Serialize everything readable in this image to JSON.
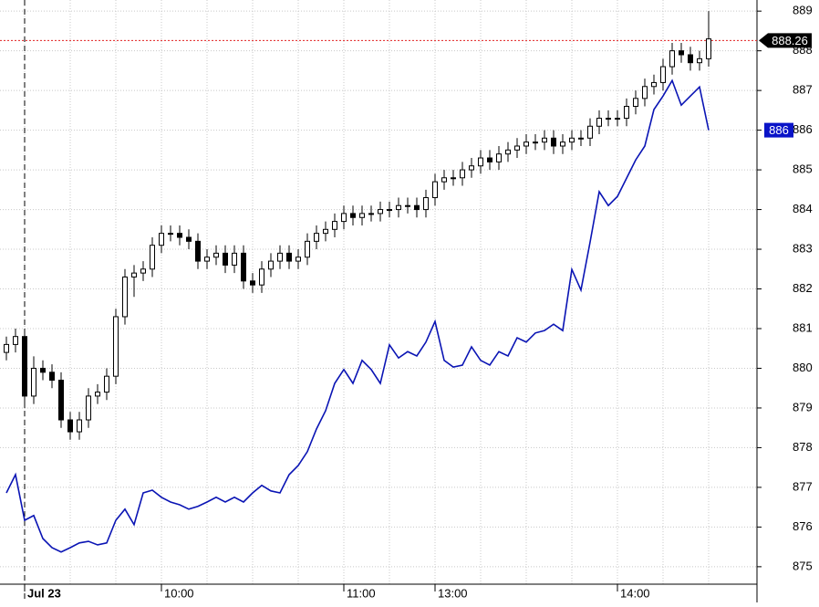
{
  "chart_data": {
    "type": "candlestick",
    "categories": [
      null,
      null,
      "Jul 23",
      null,
      null,
      null,
      null,
      null,
      null,
      null,
      null,
      null,
      null,
      null,
      null,
      null,
      null,
      "10:00",
      null,
      null,
      null,
      null,
      null,
      null,
      null,
      null,
      null,
      null,
      null,
      null,
      null,
      null,
      null,
      null,
      null,
      null,
      null,
      "11:00",
      null,
      null,
      null,
      null,
      null,
      null,
      null,
      null,
      null,
      "13:00",
      null,
      null,
      null,
      null,
      null,
      null,
      null,
      null,
      null,
      null,
      null,
      null,
      null,
      null,
      null,
      null,
      null,
      null,
      null,
      "14:00",
      null,
      null,
      null,
      null,
      null,
      null,
      null,
      null,
      null,
      null
    ],
    "open": [
      880.4,
      880.6,
      880.8,
      879.3,
      880.0,
      879.9,
      879.7,
      878.7,
      878.4,
      878.7,
      879.3,
      879.4,
      879.8,
      881.3,
      882.3,
      882.4,
      882.5,
      883.1,
      883.4,
      883.4,
      883.3,
      883.2,
      882.7,
      882.8,
      882.9,
      882.6,
      882.9,
      882.2,
      882.1,
      882.5,
      882.7,
      882.9,
      882.7,
      882.8,
      883.2,
      883.4,
      883.5,
      883.7,
      883.9,
      883.8,
      883.9,
      883.9,
      884.0,
      884.0,
      884.1,
      884.1,
      884.0,
      884.3,
      884.7,
      884.8,
      884.8,
      885.0,
      885.1,
      885.3,
      885.2,
      885.4,
      885.5,
      885.6,
      885.7,
      885.7,
      885.8,
      885.6,
      885.7,
      885.8,
      885.8,
      886.1,
      886.3,
      886.3,
      886.3,
      886.6,
      886.8,
      887.1,
      887.2,
      887.6,
      888.0,
      887.9,
      887.7,
      887.8
    ],
    "high": [
      880.8,
      881.0,
      881.0,
      880.3,
      880.2,
      880.1,
      879.9,
      878.9,
      878.9,
      879.5,
      879.6,
      880.0,
      881.5,
      882.5,
      882.6,
      882.7,
      883.3,
      883.6,
      883.6,
      883.6,
      883.5,
      883.4,
      883.0,
      883.1,
      883.1,
      883.1,
      883.1,
      882.4,
      882.7,
      882.9,
      883.1,
      883.1,
      883.0,
      883.4,
      883.6,
      883.7,
      883.9,
      884.1,
      884.1,
      884.1,
      884.1,
      884.2,
      884.2,
      884.3,
      884.3,
      884.3,
      884.5,
      884.9,
      885.0,
      885.0,
      885.2,
      885.3,
      885.5,
      885.5,
      885.6,
      885.7,
      885.8,
      885.9,
      885.9,
      886.0,
      886.0,
      885.9,
      886.0,
      886.0,
      886.3,
      886.5,
      886.5,
      886.5,
      886.8,
      887.0,
      887.3,
      887.4,
      887.8,
      888.2,
      888.2,
      888.1,
      888.0,
      889.0
    ],
    "low": [
      880.2,
      880.4,
      879.0,
      879.1,
      879.7,
      879.5,
      878.5,
      878.2,
      878.2,
      878.5,
      879.1,
      879.2,
      879.6,
      881.1,
      881.8,
      882.2,
      882.3,
      882.9,
      883.2,
      883.1,
      883.0,
      882.5,
      882.5,
      882.6,
      882.4,
      882.4,
      882.0,
      881.9,
      881.9,
      882.3,
      882.5,
      882.5,
      882.5,
      882.6,
      883.0,
      883.2,
      883.3,
      883.5,
      883.6,
      883.6,
      883.7,
      883.7,
      883.8,
      883.8,
      883.9,
      883.8,
      883.8,
      884.1,
      884.5,
      884.6,
      884.6,
      884.8,
      884.9,
      885.0,
      885.0,
      885.2,
      885.3,
      885.4,
      885.5,
      885.5,
      885.4,
      885.4,
      885.5,
      885.6,
      885.6,
      885.9,
      886.1,
      886.1,
      886.1,
      886.4,
      886.6,
      886.9,
      887.0,
      887.4,
      887.7,
      887.5,
      887.5,
      887.6
    ],
    "close": [
      880.6,
      880.8,
      879.3,
      880.0,
      879.9,
      879.7,
      878.7,
      878.4,
      878.7,
      879.3,
      879.4,
      879.8,
      881.3,
      882.3,
      882.4,
      882.5,
      883.1,
      883.4,
      883.4,
      883.3,
      883.2,
      882.7,
      882.8,
      882.9,
      882.6,
      882.9,
      882.2,
      882.1,
      882.5,
      882.7,
      882.9,
      882.7,
      882.8,
      883.2,
      883.4,
      883.5,
      883.7,
      883.9,
      883.8,
      883.9,
      883.9,
      884.0,
      884.0,
      884.1,
      884.1,
      884.0,
      884.3,
      884.7,
      884.8,
      884.8,
      885.0,
      885.1,
      885.3,
      885.2,
      885.4,
      885.5,
      885.6,
      885.7,
      885.7,
      885.8,
      885.6,
      885.7,
      885.8,
      885.8,
      886.1,
      886.3,
      886.3,
      886.3,
      886.6,
      886.8,
      887.1,
      887.2,
      887.6,
      888.0,
      887.9,
      887.7,
      887.8,
      888.3
    ],
    "candle_color": "#000000",
    "line_values": [
      876.86,
      877.32,
      876.17,
      876.29,
      875.71,
      875.48,
      875.37,
      875.48,
      875.6,
      875.64,
      875.55,
      875.6,
      876.17,
      876.45,
      876.06,
      876.86,
      876.93,
      876.75,
      876.63,
      876.56,
      876.45,
      876.52,
      876.63,
      876.75,
      876.63,
      876.75,
      876.63,
      876.86,
      877.05,
      876.91,
      876.86,
      877.32,
      877.55,
      877.9,
      878.47,
      878.93,
      879.62,
      879.97,
      879.62,
      880.2,
      879.97,
      879.62,
      880.59,
      880.26,
      880.42,
      880.31,
      880.66,
      881.18,
      880.2,
      880.03,
      880.08,
      880.54,
      880.2,
      880.08,
      880.42,
      880.31,
      880.77,
      880.66,
      880.89,
      880.95,
      881.11,
      880.95,
      882.49,
      881.97,
      883.18,
      884.45,
      884.1,
      884.33,
      884.79,
      885.25,
      885.6,
      886.52,
      886.86,
      887.25,
      886.63,
      886.86,
      887.09,
      886
    ],
    "line_color": "#0a14b4",
    "price_markers": [
      {
        "value": 888.26,
        "color": "#000000"
      },
      {
        "value": 886,
        "color": "#0a14c8"
      }
    ],
    "ylim": [
      874.56,
      889.28
    ],
    "yticks": [
      875,
      876,
      877,
      878,
      879,
      880,
      881,
      882,
      883,
      884,
      885,
      886,
      887,
      888,
      889
    ],
    "grid": true
  }
}
